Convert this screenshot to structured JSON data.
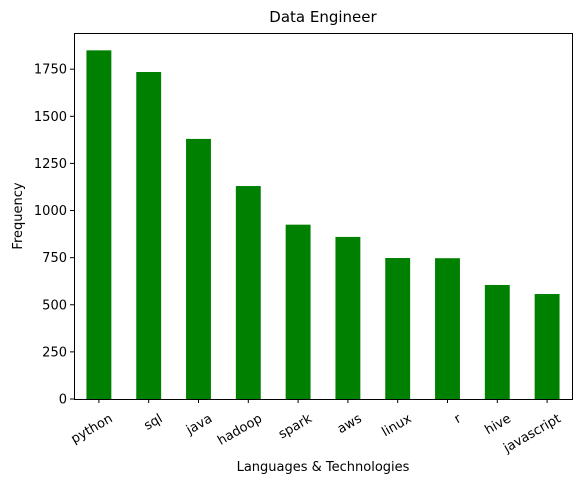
{
  "chart_data": {
    "type": "bar",
    "title": "Data Engineer",
    "xlabel": "Languages & Technologies",
    "ylabel": "Frequency",
    "categories": [
      "python",
      "sql",
      "java",
      "hadoop",
      "spark",
      "aws",
      "linux",
      "r",
      "hive",
      "javascript"
    ],
    "values": [
      1850,
      1735,
      1380,
      1130,
      925,
      860,
      748,
      747,
      605,
      557
    ],
    "ylim": [
      0,
      1942
    ],
    "yticks": [
      0,
      250,
      500,
      750,
      1000,
      1250,
      1500,
      1750
    ],
    "bar_color": "#008000",
    "grid": false,
    "legend": "none"
  }
}
